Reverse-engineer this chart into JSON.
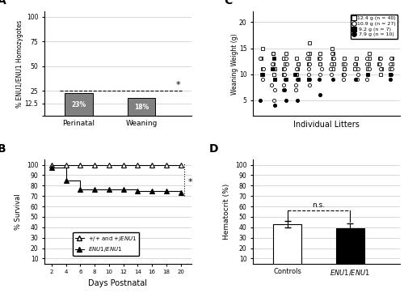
{
  "panel_A": {
    "title": "A",
    "bars": [
      23,
      18
    ],
    "bar_labels": [
      "23%",
      "18%"
    ],
    "categories": [
      "Perinatal",
      "Weaning"
    ],
    "bar_color": "#808080",
    "ylabel": "% ENU1/ENU1 Homozygotes",
    "yticks": [
      0,
      12.5,
      25,
      50,
      75,
      100
    ],
    "ytick_labels": [
      "",
      "12.5",
      "25",
      "50",
      "75",
      "100"
    ],
    "ylim": [
      0,
      105
    ],
    "mendelian_line": 25,
    "star_x": 1.55,
    "star_y": 31
  },
  "panel_B": {
    "title": "B",
    "days": [
      2,
      4,
      6,
      8,
      10,
      12,
      14,
      16,
      18,
      20
    ],
    "control_survival": [
      100,
      100,
      100,
      100,
      100,
      100,
      100,
      100,
      100,
      100
    ],
    "mutant_survival": [
      97,
      85,
      76,
      76,
      76,
      76,
      75,
      75,
      75,
      73
    ],
    "ylabel": "% Survival",
    "xlabel": "Days Postnatal",
    "yticks": [
      10,
      20,
      30,
      40,
      50,
      60,
      70,
      80,
      90,
      100
    ],
    "ylim": [
      5,
      105
    ],
    "xlim": [
      1,
      21.5
    ]
  },
  "panel_C": {
    "title": "C",
    "ylabel": "Weaning Weight (g)",
    "xlabel": "Individual Litters",
    "ylim": [
      2,
      22
    ],
    "yticks": [
      5,
      10,
      15,
      20
    ],
    "legend_labels": [
      "12.4 g (n = 40)",
      "10.9 g (n = 27)",
      " 9.2 g (n = 7)",
      " 7.9 g (n = 10)"
    ],
    "litters": 12,
    "litter_data": [
      {
        "x": 1,
        "open_sq": [
          15,
          13,
          11,
          10
        ],
        "open_ci": [
          13,
          11,
          9
        ],
        "filled_sq": [
          10
        ],
        "filled_ci": [
          5
        ]
      },
      {
        "x": 2,
        "open_sq": [
          14,
          12,
          11,
          10,
          9
        ],
        "open_ci": [
          14,
          12,
          11,
          8,
          7,
          5
        ],
        "filled_sq": [
          13,
          11,
          9
        ],
        "filled_ci": [
          4
        ]
      },
      {
        "x": 3,
        "open_sq": [
          14,
          13,
          12,
          11,
          10,
          9
        ],
        "open_ci": [
          13,
          12,
          11,
          10,
          9,
          8,
          7
        ],
        "filled_sq": [],
        "filled_ci": [
          9,
          7,
          5
        ]
      },
      {
        "x": 4,
        "open_sq": [
          13,
          12,
          11,
          10,
          9
        ],
        "open_ci": [
          12,
          11,
          10,
          9,
          8,
          7
        ],
        "filled_sq": [
          10
        ],
        "filled_ci": [
          9,
          5
        ]
      },
      {
        "x": 5,
        "open_sq": [
          16,
          14,
          13,
          12
        ],
        "open_ci": [
          14,
          13,
          12,
          11,
          10,
          9,
          8
        ],
        "filled_sq": [
          9
        ],
        "filled_ci": [
          9
        ]
      },
      {
        "x": 6,
        "open_sq": [
          14,
          13,
          12
        ],
        "open_ci": [
          13,
          12,
          11,
          10
        ],
        "filled_sq": [],
        "filled_ci": [
          9,
          6
        ]
      },
      {
        "x": 7,
        "open_sq": [
          15,
          14,
          13,
          12,
          11
        ],
        "open_ci": [
          14,
          13,
          12,
          11,
          10
        ],
        "filled_sq": [],
        "filled_ci": [
          9
        ]
      },
      {
        "x": 8,
        "open_sq": [
          13,
          12,
          11,
          10
        ],
        "open_ci": [
          12,
          11,
          10,
          9
        ],
        "filled_sq": [],
        "filled_ci": []
      },
      {
        "x": 9,
        "open_sq": [
          13,
          12,
          11
        ],
        "open_ci": [
          12,
          11,
          10,
          9
        ],
        "filled_sq": [],
        "filled_ci": [
          9
        ]
      },
      {
        "x": 10,
        "open_sq": [
          14,
          13,
          12,
          11
        ],
        "open_ci": [
          13,
          12,
          11,
          10,
          9
        ],
        "filled_sq": [
          10
        ],
        "filled_ci": []
      },
      {
        "x": 11,
        "open_sq": [
          13,
          12,
          11,
          10
        ],
        "open_ci": [
          13,
          12,
          11
        ],
        "filled_sq": [],
        "filled_ci": []
      },
      {
        "x": 12,
        "open_sq": [
          13,
          12,
          11
        ],
        "open_ci": [
          13,
          12,
          11,
          10
        ],
        "filled_sq": [
          10
        ],
        "filled_ci": [
          9
        ]
      }
    ]
  },
  "panel_D": {
    "title": "D",
    "categories": [
      "Controls",
      "ENU1/ENU1"
    ],
    "means": [
      43,
      39
    ],
    "errors": [
      3,
      5
    ],
    "bar_colors": [
      "white",
      "black"
    ],
    "ylabel": "Hematocrit (%)",
    "yticks": [
      10,
      20,
      30,
      40,
      50,
      60,
      70,
      80,
      90,
      100
    ],
    "ylim": [
      5,
      105
    ],
    "ns_text": "n.s.",
    "ns_line_y": 56,
    "edge_color": "black"
  },
  "bg_color": "white",
  "grid_color": "#c8c8c8"
}
